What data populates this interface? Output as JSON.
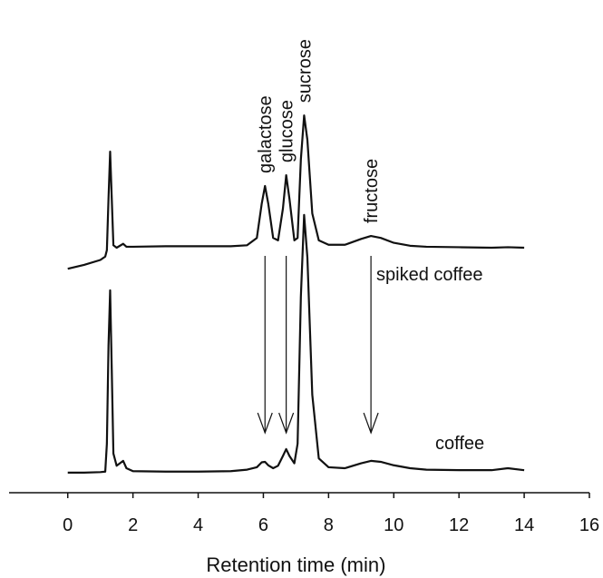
{
  "chart_data": {
    "type": "line",
    "x_label": "Retention time (min)",
    "x": [
      0,
      0.5,
      1,
      1.15,
      1.2,
      1.25,
      1.3,
      1.35,
      1.4,
      1.5,
      1.7,
      1.8,
      2,
      3,
      4,
      5,
      5.5,
      5.8,
      5.95,
      6.05,
      6.15,
      6.3,
      6.45,
      6.6,
      6.7,
      6.8,
      6.95,
      7.05,
      7.15,
      7.25,
      7.35,
      7.5,
      7.7,
      8,
      8.5,
      9,
      9.3,
      9.6,
      10,
      10.5,
      11,
      12,
      13,
      13.5,
      14
    ],
    "series": [
      {
        "name": "spiked coffee",
        "color": "#111111",
        "values": [
          45.7,
          46.5,
          47.5,
          48.2,
          49.5,
          60,
          69.6,
          60,
          50.5,
          50,
          50.8,
          50.2,
          50.2,
          50.3,
          50.3,
          50.3,
          50.5,
          52,
          59,
          62.6,
          59,
          52,
          51.5,
          58,
          64.8,
          60,
          51.5,
          52,
          68,
          77,
          72,
          57,
          51.5,
          50.6,
          50.6,
          51.8,
          52.4,
          52,
          51,
          50.4,
          50.2,
          50.1,
          50,
          50.1,
          50
        ]
      },
      {
        "name": "coffee",
        "color": "#111111",
        "values": [
          4.1,
          4.1,
          4.2,
          4.3,
          10,
          30,
          41.3,
          25,
          8,
          5.5,
          6.5,
          5,
          4.4,
          4.3,
          4.3,
          4.4,
          4.7,
          5.2,
          6.2,
          6.3,
          5.6,
          5,
          5.5,
          7.5,
          8.9,
          7.5,
          6,
          10,
          40,
          56.7,
          48,
          20,
          7,
          5.2,
          5,
          6,
          6.5,
          6.3,
          5.6,
          5,
          4.7,
          4.6,
          4.6,
          5,
          4.6
        ]
      }
    ],
    "annotations": [
      {
        "text": "galactose",
        "x": 6.05
      },
      {
        "text": "glucose",
        "x": 6.7
      },
      {
        "text": "sucrose",
        "x": 7.25
      },
      {
        "text": "fructose",
        "x": 9.3
      }
    ],
    "arrows": [
      6.05,
      6.7,
      9.3
    ],
    "xlim": [
      -1.8,
      16
    ],
    "xticks": [
      0,
      2,
      4,
      6,
      8,
      10,
      12,
      14,
      16
    ],
    "ylim": [
      0,
      100
    ],
    "grid": false
  }
}
